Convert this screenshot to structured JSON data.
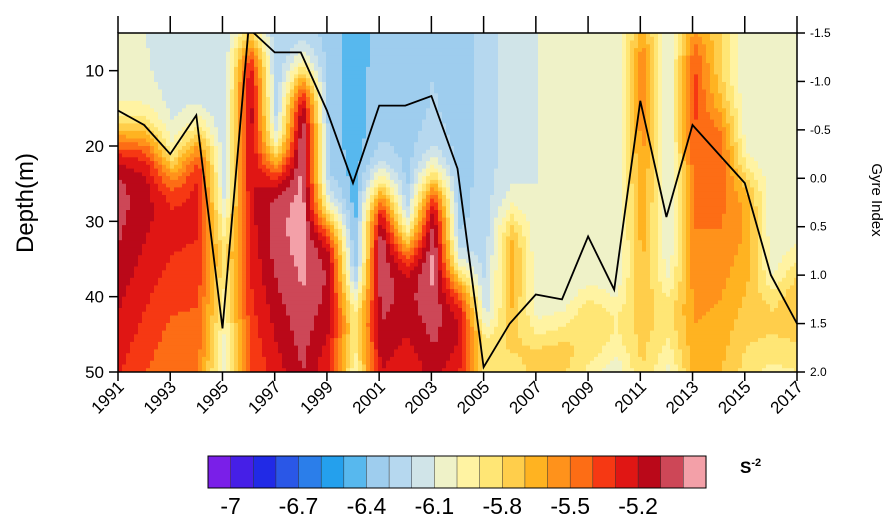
{
  "chart_data": {
    "type": "heatmap",
    "title": "",
    "xlabel": "",
    "ylabel": "Depth(m)",
    "y2label": "Gyre Index",
    "colorbar_unit": "S",
    "colorbar_unit_exp": "-2",
    "x_range": [
      1991,
      2017
    ],
    "x_ticks": [
      "1991",
      "1993",
      "1995",
      "1997",
      "1999",
      "2001",
      "2003",
      "2005",
      "2007",
      "2009",
      "2011",
      "2013",
      "2015",
      "2017"
    ],
    "y_range": [
      5,
      50
    ],
    "y_ticks": [
      "10",
      "20",
      "30",
      "40",
      "50"
    ],
    "y2_range": [
      -1.5,
      2.0
    ],
    "y2_ticks": [
      "-1.5",
      "-1.0",
      "-0.5",
      "0.0",
      "0.5",
      "1.0",
      "1.5",
      "2.0"
    ],
    "colorbar_range": [
      -7.1,
      -4.9
    ],
    "colorbar_step": 0.1,
    "colorbar_ticks": [
      "-7",
      "-6.7",
      "-6.4",
      "-6.1",
      "-5.8",
      "-5.5",
      "-5.2"
    ],
    "colormap_stops": [
      "#7a1fe8",
      "#1f1fe6",
      "#2f6de8",
      "#22a8ee",
      "#9ecdee",
      "#c8e0f0",
      "#fff9b8",
      "#ffe36a",
      "#ffb321",
      "#ff7a16",
      "#f31d12",
      "#b0041a",
      "#f3a0a8"
    ],
    "years": [
      1991,
      1992,
      1993,
      1994,
      1995,
      1996,
      1997,
      1998,
      1999,
      2000,
      2001,
      2002,
      2003,
      2004,
      2005,
      2006,
      2007,
      2008,
      2009,
      2010,
      2011,
      2012,
      2013,
      2014,
      2015,
      2016,
      2017
    ],
    "field": {
      "surface_value": [
        -6.1,
        -6.1,
        -6.15,
        -6.2,
        -6.2,
        -6.2,
        -6.3,
        -6.3,
        -6.35,
        -6.45,
        -6.35,
        -6.35,
        -6.3,
        -6.35,
        -6.25,
        -6.15,
        -6.1,
        -6.1,
        -6.1,
        -6.1,
        -5.8,
        -6.1,
        -5.8,
        -5.8,
        -6.1,
        -6.1,
        -6.1
      ],
      "deep_value": [
        -5.3,
        -5.4,
        -5.5,
        -5.5,
        -6.1,
        -5.4,
        -5.25,
        -5.1,
        -5.3,
        -6.0,
        -5.2,
        -5.3,
        -5.15,
        -5.3,
        -5.95,
        -5.85,
        -5.9,
        -5.9,
        -5.95,
        -6.1,
        -5.8,
        -6.05,
        -5.65,
        -5.7,
        -5.85,
        -5.95,
        -5.9
      ],
      "transition_depth": [
        19,
        19,
        23,
        19,
        30,
        6,
        22,
        11,
        30,
        40,
        26,
        33,
        25,
        38,
        45,
        30,
        46,
        45,
        41,
        42,
        5,
        40,
        5,
        16,
        24,
        40,
        36
      ]
    },
    "gyre_index_series": {
      "name": "Gyre Index",
      "x": [
        1991,
        1992,
        1993,
        1994,
        1995,
        1996,
        1997,
        1998,
        1999,
        2000,
        2001,
        2002,
        2003,
        2004,
        2005,
        2006,
        2007,
        2008,
        2009,
        2010,
        2011,
        2012,
        2013,
        2014,
        2015,
        2016,
        2017
      ],
      "values": [
        -0.7,
        -0.55,
        -0.25,
        -0.65,
        1.55,
        -1.55,
        -1.3,
        -1.3,
        -0.7,
        0.05,
        -0.75,
        -0.75,
        -0.85,
        -0.1,
        1.95,
        1.5,
        1.2,
        1.25,
        0.6,
        1.15,
        -0.8,
        0.4,
        -0.55,
        -0.25,
        0.05,
        1.0,
        1.5
      ]
    }
  }
}
